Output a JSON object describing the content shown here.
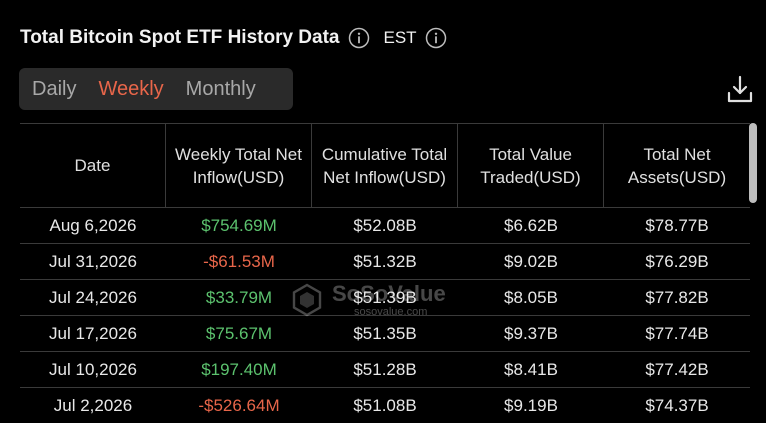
{
  "header": {
    "title": "Total Bitcoin Spot ETF History Data",
    "timezone": "EST"
  },
  "tabs": [
    {
      "label": "Daily",
      "active": false
    },
    {
      "label": "Weekly",
      "active": true
    },
    {
      "label": "Monthly",
      "active": false
    }
  ],
  "table": {
    "columns": [
      "Date",
      "Weekly Total Net Inflow(USD)",
      "Cumulative Total Net Inflow(USD)",
      "Total Value Traded(USD)",
      "Total Net Assets(USD)"
    ],
    "rows": [
      {
        "date": "Aug 6,2026",
        "inflow": "$754.69M",
        "inflow_sign": "pos",
        "cumulative": "$52.08B",
        "traded": "$6.62B",
        "assets": "$78.77B"
      },
      {
        "date": "Jul 31,2026",
        "inflow": "-$61.53M",
        "inflow_sign": "neg",
        "cumulative": "$51.32B",
        "traded": "$9.02B",
        "assets": "$76.29B"
      },
      {
        "date": "Jul 24,2026",
        "inflow": "$33.79M",
        "inflow_sign": "pos",
        "cumulative": "$51.39B",
        "traded": "$8.05B",
        "assets": "$77.82B"
      },
      {
        "date": "Jul 17,2026",
        "inflow": "$75.67M",
        "inflow_sign": "pos",
        "cumulative": "$51.35B",
        "traded": "$9.37B",
        "assets": "$77.74B"
      },
      {
        "date": "Jul 10,2026",
        "inflow": "$197.40M",
        "inflow_sign": "pos",
        "cumulative": "$51.28B",
        "traded": "$8.41B",
        "assets": "$77.42B"
      },
      {
        "date": "Jul 2,2026",
        "inflow": "-$526.64M",
        "inflow_sign": "neg",
        "cumulative": "$51.08B",
        "traded": "$9.19B",
        "assets": "$74.37B"
      }
    ]
  },
  "watermark": {
    "name": "SoSoValue",
    "url": "sosovalue.com"
  },
  "colors": {
    "accent": "#e8664a",
    "positive": "#5cc26e",
    "negative": "#e8664a",
    "background": "#000000"
  },
  "icons": {
    "title_info": "info-icon",
    "timezone_info": "info-icon",
    "download": "download-icon"
  }
}
